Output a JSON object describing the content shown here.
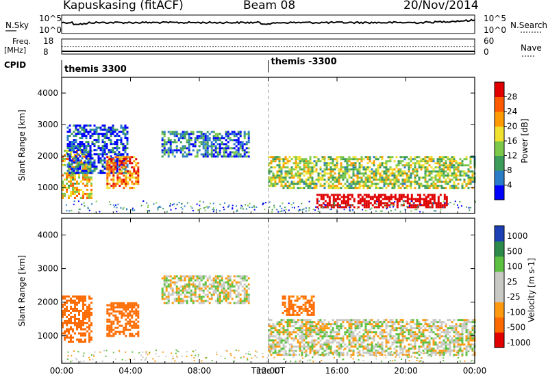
{
  "header": {
    "station": "Kapuskasing (fitACF)",
    "beam": "Beam 08",
    "date": "20/Nov/2014"
  },
  "top_panels": {
    "nsky_label": "N.Sky",
    "nsearch_label": "N.Search",
    "noise_ticks": [
      "10^5",
      "10^0"
    ],
    "freq_label": "Freq.",
    "freq_unit": "[MHz]",
    "freq_ticks": [
      "18",
      "8"
    ],
    "nave_label": "Nave",
    "nave_ticks": [
      "60",
      "0"
    ],
    "cpid_label": "CPID",
    "cpid_segments": [
      "themis 3300",
      "themis -3300"
    ]
  },
  "colors": {
    "power": [
      "#0000ff",
      "#2b7cc8",
      "#3c9c5a",
      "#7cc84a",
      "#f0e030",
      "#ff9a00",
      "#ff5a00",
      "#e00000"
    ],
    "velocity_pos": [
      "#1c3fb4",
      "#2c8a4a",
      "#5cc040"
    ],
    "velocity_neutral": "#c8c8c4",
    "velocity_neg": [
      "#ff9a10",
      "#ff6a00",
      "#e00000"
    ]
  },
  "chart_data": [
    {
      "type": "heatmap",
      "title": "",
      "xlabel": "",
      "ylabel": "Slant Range [km]",
      "xlim": [
        "00:00",
        "24:00"
      ],
      "ylim": [
        180,
        4500
      ],
      "x_tick_labels": [
        "00:00",
        "04:00",
        "08:00",
        "12:00",
        "16:00",
        "20:00",
        "00:00"
      ],
      "y_ticks": [
        1000,
        2000,
        3000,
        4000
      ],
      "colorbar": {
        "label": "Power [dB]",
        "tick_labels": [
          "4",
          "8",
          "12",
          "16",
          "20",
          "24",
          "28"
        ],
        "range": [
          0,
          30
        ]
      },
      "regions": [
        {
          "t0": 0.0,
          "t1": 1.7,
          "r0": 700,
          "r1": 2200,
          "value": 18
        },
        {
          "t0": 0.3,
          "t1": 3.8,
          "r0": 1500,
          "r1": 3000,
          "value": 4
        },
        {
          "t0": 2.6,
          "t1": 4.5,
          "r0": 1000,
          "r1": 2000,
          "value": 22
        },
        {
          "t0": 5.8,
          "t1": 10.9,
          "r0": 2000,
          "r1": 2800,
          "value": 6
        },
        {
          "t0": 12.0,
          "t1": 24.0,
          "r0": 1000,
          "r1": 2000,
          "value": 14
        },
        {
          "t0": 14.8,
          "t1": 22.4,
          "r0": 400,
          "r1": 800,
          "value": 28
        }
      ]
    },
    {
      "type": "heatmap",
      "title": "",
      "xlabel": "Time UT",
      "ylabel": "Slant Range [km]",
      "xlim": [
        "00:00",
        "24:00"
      ],
      "ylim": [
        180,
        4500
      ],
      "x_tick_labels": [
        "00:00",
        "04:00",
        "08:00",
        "12:00",
        "16:00",
        "20:00",
        "00:00"
      ],
      "y_ticks": [
        1000,
        2000,
        3000,
        4000
      ],
      "colorbar": {
        "label": "Velocity [m s-1]",
        "tick_labels": [
          "1000",
          "500",
          "100",
          "25",
          "-25",
          "-100",
          "-500",
          "-1000"
        ]
      },
      "regions": [
        {
          "t0": 0.0,
          "t1": 1.7,
          "r0": 800,
          "r1": 2200,
          "value": -300
        },
        {
          "t0": 2.6,
          "t1": 4.5,
          "r0": 1000,
          "r1": 2000,
          "value": -300
        },
        {
          "t0": 5.8,
          "t1": 10.9,
          "r0": 2000,
          "r1": 2800,
          "value": 0
        },
        {
          "t0": 12.0,
          "t1": 24.0,
          "r0": 400,
          "r1": 1500,
          "value": 0
        },
        {
          "t0": 12.8,
          "t1": 14.6,
          "r0": 1600,
          "r1": 2200,
          "value": -150
        }
      ]
    }
  ]
}
